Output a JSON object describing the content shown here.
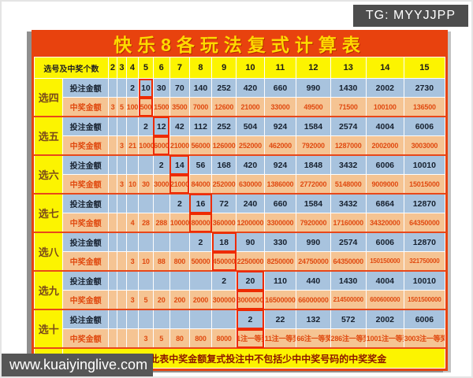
{
  "badge": {
    "text": "TG: MYYJJPP"
  },
  "footer": {
    "site": "www.kuaiyinglive.com"
  },
  "colors": {
    "banner_red": "#e8420e",
    "header_yellow": "#fcf400",
    "bet_bg": "#a8c3de",
    "prize_bg": "#f5c493",
    "prize_text": "#e04a10",
    "highlight_red": "#ee2a00",
    "badge_bg": "#4d4d4d"
  },
  "chart_data": {
    "type": "table",
    "title": "快乐8各玩法复式计算表",
    "header_label": "选号及中奖个数",
    "columns": [
      "2",
      "3",
      "4",
      "5",
      "6",
      "7",
      "8",
      "9",
      "10",
      "11",
      "12",
      "13",
      "14",
      "15"
    ],
    "row_labels": {
      "bet": "投注金额",
      "prize": "中奖金额"
    },
    "remark": "备注：此表中奖金额复式投注中不包括少中中奖号码的中奖奖金",
    "groups": [
      {
        "name": "选四",
        "highlight": 3,
        "bet": [
          "",
          "",
          "2",
          "10",
          "30",
          "70",
          "140",
          "252",
          "420",
          "660",
          "990",
          "1430",
          "2002",
          "2730"
        ],
        "prize": [
          "3",
          "5",
          "100",
          "500",
          "1500",
          "3500",
          "7000",
          "12600",
          "21000",
          "33000",
          "49500",
          "71500",
          "100100",
          "136500"
        ]
      },
      {
        "name": "选五",
        "highlight": 4,
        "bet": [
          "",
          "",
          "",
          "2",
          "12",
          "42",
          "112",
          "252",
          "504",
          "924",
          "1584",
          "2574",
          "4004",
          "6006"
        ],
        "prize": [
          "",
          "3",
          "21",
          "1000",
          "6000",
          "21000",
          "56000",
          "126000",
          "252000",
          "462000",
          "792000",
          "1287000",
          "2002000",
          "3003000"
        ]
      },
      {
        "name": "选六",
        "highlight": 5,
        "bet": [
          "",
          "",
          "",
          "",
          "2",
          "14",
          "56",
          "168",
          "420",
          "924",
          "1848",
          "3432",
          "6006",
          "10010"
        ],
        "prize": [
          "",
          "3",
          "10",
          "30",
          "3000",
          "21000",
          "84000",
          "252000",
          "630000",
          "1386000",
          "2772000",
          "5148000",
          "9009000",
          "15015000"
        ]
      },
      {
        "name": "选七",
        "highlight": 6,
        "bet": [
          "",
          "",
          "",
          "",
          "",
          "2",
          "16",
          "72",
          "240",
          "660",
          "1584",
          "3432",
          "6864",
          "12870"
        ],
        "prize": [
          "",
          "",
          "4",
          "28",
          "288",
          "10000",
          "80000",
          "360000",
          "1200000",
          "3300000",
          "7920000",
          "17160000",
          "34320000",
          "64350000"
        ]
      },
      {
        "name": "选八",
        "highlight": 7,
        "bet": [
          "",
          "",
          "",
          "",
          "",
          "",
          "2",
          "18",
          "90",
          "330",
          "990",
          "2574",
          "6006",
          "12870"
        ],
        "prize": [
          "",
          "",
          "3",
          "10",
          "88",
          "800",
          "50000",
          "450000",
          "2250000",
          "8250000",
          "24750000",
          "64350000",
          "150150000",
          "321750000"
        ]
      },
      {
        "name": "选九",
        "highlight": 8,
        "bet": [
          "",
          "",
          "",
          "",
          "",
          "",
          "",
          "2",
          "20",
          "110",
          "440",
          "1430",
          "4004",
          "10010"
        ],
        "prize": [
          "",
          "",
          "3",
          "5",
          "20",
          "200",
          "2000",
          "300000",
          "3000000",
          "16500000",
          "66000000",
          "214500000",
          "600600000",
          "1501500000"
        ]
      },
      {
        "name": "选十",
        "highlight": 8,
        "bet": [
          "",
          "",
          "",
          "",
          "",
          "",
          "",
          "",
          "2",
          "22",
          "132",
          "572",
          "2002",
          "6006"
        ],
        "prize": [
          "",
          "",
          "",
          "3",
          "5",
          "80",
          "800",
          "8000",
          "1注一等奖",
          "11注一等奖",
          "66注一等奖",
          "286注一等奖",
          "1001注一等奖",
          "3003注一等奖"
        ]
      }
    ]
  }
}
